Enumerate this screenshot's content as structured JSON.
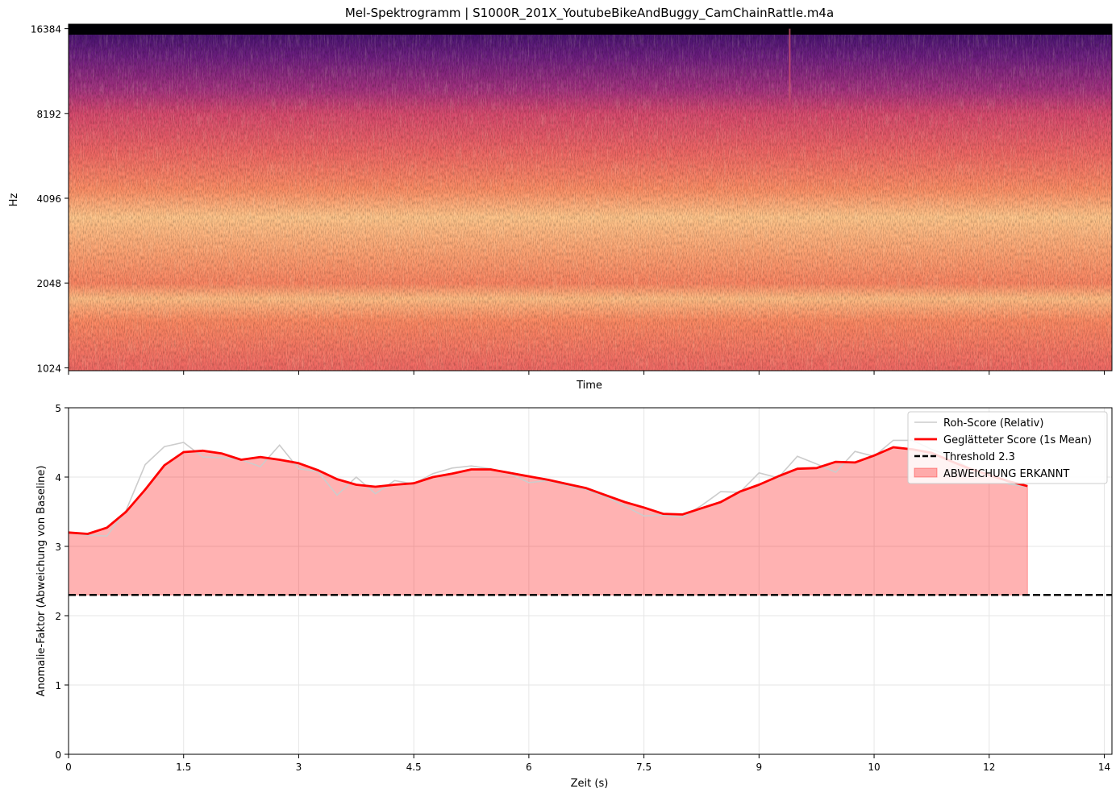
{
  "chart_data": [
    {
      "type": "heatmap",
      "title": "Mel-Spektrogramm | S1000R_201X_YoutubeBikeAndBuggy_CamChainRattle.m4a",
      "xlabel": "Time",
      "ylabel": "Hz",
      "yscale": "log2 (mel)",
      "ylim": [
        1000,
        17000
      ],
      "yticks": [
        "16384",
        "8192",
        "4096",
        "2048",
        "1024"
      ],
      "ytick_values": [
        16384,
        8192,
        4096,
        2048,
        1024
      ],
      "xlim": [
        0,
        13.6
      ],
      "colormap": "magma",
      "colorbar": false,
      "energy_profile": [
        {
          "hz": 17000,
          "level": 0.0
        },
        {
          "hz": 16000,
          "level": 0.22
        },
        {
          "hz": 13000,
          "level": 0.32
        },
        {
          "hz": 10000,
          "level": 0.45
        },
        {
          "hz": 8192,
          "level": 0.58
        },
        {
          "hz": 6000,
          "level": 0.67
        },
        {
          "hz": 4400,
          "level": 0.76
        },
        {
          "hz": 3500,
          "level": 0.88
        },
        {
          "hz": 2600,
          "level": 0.8
        },
        {
          "hz": 2048,
          "level": 0.74
        },
        {
          "hz": 1800,
          "level": 0.86
        },
        {
          "hz": 1500,
          "level": 0.75
        },
        {
          "hz": 1024,
          "level": 0.68
        }
      ],
      "features": [
        {
          "kind": "vertical-streak",
          "time_s": 9.4,
          "from_hz": 9000,
          "to_hz": 16384
        }
      ]
    },
    {
      "type": "line",
      "xlabel": "Zeit (s)",
      "ylabel": "Anomalie-Faktor (Abweichung von Baseline)",
      "xlim": [
        0,
        13.6
      ],
      "ylim": [
        0,
        5
      ],
      "xticks": [
        "0",
        "1.5",
        "3",
        "4.5",
        "6",
        "7.5",
        "9",
        "10",
        "12",
        "14"
      ],
      "xtick_values": [
        0,
        1.5,
        3,
        4.5,
        6,
        7.5,
        9,
        10.5,
        12,
        13.5
      ],
      "yticks": [
        "0",
        "1",
        "2",
        "3",
        "4",
        "5"
      ],
      "ytick_values": [
        0,
        1,
        2,
        3,
        4,
        5
      ],
      "grid": true,
      "legend_position": "top-right",
      "series": [
        {
          "name": "Roh-Score (Relativ)",
          "color": "#cccccc",
          "x": [
            0,
            0.25,
            0.5,
            0.75,
            1.0,
            1.25,
            1.5,
            1.75,
            2.0,
            2.25,
            2.5,
            2.75,
            3.0,
            3.25,
            3.5,
            3.75,
            4.0,
            4.25,
            4.5,
            4.75,
            5.0,
            5.25,
            5.5,
            5.75,
            6.0,
            6.25,
            6.5,
            6.75,
            7.0,
            7.25,
            7.5,
            7.75,
            8.0,
            8.25,
            8.5,
            8.75,
            9.0,
            9.25,
            9.5,
            9.75,
            10.0,
            10.25,
            10.5,
            10.75,
            11.0,
            11.25,
            11.5,
            11.75,
            12.0,
            12.25,
            12.5
          ],
          "y": [
            3.2,
            3.16,
            3.15,
            3.52,
            4.18,
            4.44,
            4.5,
            4.29,
            4.28,
            4.25,
            4.15,
            4.46,
            4.12,
            4.08,
            3.74,
            4.0,
            3.76,
            3.95,
            3.9,
            4.05,
            4.13,
            4.16,
            4.12,
            4.05,
            3.92,
            3.95,
            3.88,
            3.82,
            3.72,
            3.58,
            3.44,
            3.45,
            3.42,
            3.59,
            3.79,
            3.78,
            4.06,
            3.99,
            4.3,
            4.19,
            4.07,
            4.37,
            4.3,
            4.53,
            4.53,
            4.4,
            4.3,
            4.12,
            4.05,
            3.9,
            3.86
          ]
        },
        {
          "name": "Geglätteter Score (1s Mean)",
          "color": "#ff0000",
          "x": [
            0,
            0.25,
            0.5,
            0.75,
            1.0,
            1.25,
            1.5,
            1.75,
            2.0,
            2.25,
            2.5,
            2.75,
            3.0,
            3.25,
            3.5,
            3.75,
            4.0,
            4.25,
            4.5,
            4.75,
            5.0,
            5.25,
            5.5,
            5.75,
            6.0,
            6.25,
            6.5,
            6.75,
            7.0,
            7.25,
            7.5,
            7.75,
            8.0,
            8.25,
            8.5,
            8.75,
            9.0,
            9.25,
            9.5,
            9.75,
            10.0,
            10.25,
            10.5,
            10.75,
            11.0,
            11.25,
            11.5,
            11.75,
            12.0,
            12.25,
            12.5
          ],
          "y": [
            3.2,
            3.18,
            3.27,
            3.5,
            3.82,
            4.17,
            4.36,
            4.38,
            4.34,
            4.25,
            4.29,
            4.25,
            4.2,
            4.1,
            3.97,
            3.89,
            3.86,
            3.89,
            3.91,
            4.0,
            4.05,
            4.11,
            4.11,
            4.06,
            4.01,
            3.96,
            3.9,
            3.84,
            3.74,
            3.64,
            3.56,
            3.47,
            3.46,
            3.55,
            3.64,
            3.79,
            3.89,
            4.01,
            4.12,
            4.13,
            4.22,
            4.21,
            4.31,
            4.43,
            4.4,
            4.35,
            4.23,
            4.12,
            4.03,
            3.94,
            3.87
          ]
        },
        {
          "name": "Threshold 2.3",
          "color": "#000000",
          "style": "dashed",
          "y_constant": 2.3
        }
      ],
      "filled_region": {
        "name": "ABWEICHUNG ERKANNT",
        "color": "#ff0000",
        "alpha": 0.3,
        "between": [
          "Geglätteter Score (1s Mean)",
          "Threshold 2.3"
        ]
      }
    }
  ]
}
